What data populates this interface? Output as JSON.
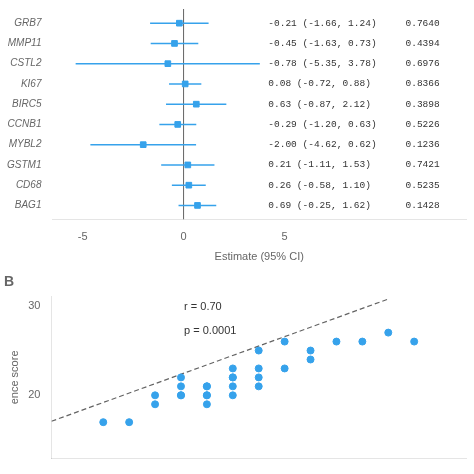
{
  "chart_data": [
    {
      "type": "forest",
      "xlabel": "Estimate (95% CI)",
      "categories": [
        "GRB7",
        "MMP11",
        "CSTL2",
        "KI67",
        "BIRC5",
        "CCNB1",
        "MYBL2",
        "GSTM1",
        "CD68",
        "BAG1"
      ],
      "values": [
        -0.21,
        -0.45,
        -0.78,
        0.08,
        0.63,
        -0.29,
        -2.0,
        0.21,
        0.26,
        0.69
      ],
      "ci_low": [
        -1.66,
        -1.63,
        -5.35,
        -0.72,
        -0.87,
        -1.2,
        -4.62,
        -1.11,
        -0.58,
        -0.25
      ],
      "ci_high": [
        1.24,
        0.73,
        3.78,
        0.88,
        2.12,
        0.63,
        0.62,
        1.53,
        1.1,
        1.62
      ],
      "value_labels": [
        "-0.21 (-1.66, 1.24)",
        "-0.45 (-1.63, 0.73)",
        "-0.78 (-5.35, 3.78)",
        "0.08 (-0.72, 0.88)",
        "0.63 (-0.87, 2.12)",
        "-0.29 (-1.20, 0.63)",
        "-2.00 (-4.62, 0.62)",
        "0.21 (-1.11, 1.53)",
        "0.26 (-0.58, 1.10)",
        "0.69 (-0.25, 1.62)"
      ],
      "p_values": [
        "0.7640",
        "0.4394",
        "0.6976",
        "0.8366",
        "0.3898",
        "0.5226",
        "0.1236",
        "0.7421",
        "0.5235",
        "0.1428"
      ],
      "reference_x": 0,
      "xlim": [
        -6.5,
        14
      ],
      "xticks": [
        -5,
        0,
        5
      ],
      "marker": "square",
      "grid": false
    },
    {
      "type": "scatter",
      "title": "B",
      "ylabel": "ence score",
      "series": [
        {
          "type": "scatter",
          "marker": "circle",
          "x": [
            14,
            15,
            16,
            16,
            17,
            17,
            17,
            17,
            18,
            18,
            18,
            18,
            18,
            19,
            19,
            19,
            19,
            19,
            20,
            20,
            20,
            20,
            21,
            21,
            22,
            22,
            23,
            24,
            25,
            26
          ],
          "values": [
            17,
            17,
            19,
            20,
            20,
            20,
            21,
            22,
            19,
            20,
            20,
            21,
            21,
            20,
            21,
            22,
            22,
            23,
            21,
            22,
            23,
            25,
            23,
            26,
            24,
            25,
            26,
            26,
            27,
            26
          ]
        },
        {
          "type": "line",
          "line_style": "dashed",
          "x": [
            12,
            25
          ],
          "values": [
            17.1,
            30.75
          ]
        }
      ],
      "annotations": [
        "r = 0.70",
        "p = 0.0001"
      ],
      "xlim": [
        12,
        28
      ],
      "ylim": [
        13,
        31
      ],
      "yticks": [
        20,
        30
      ],
      "tick_labels": "y",
      "grid": false
    }
  ]
}
